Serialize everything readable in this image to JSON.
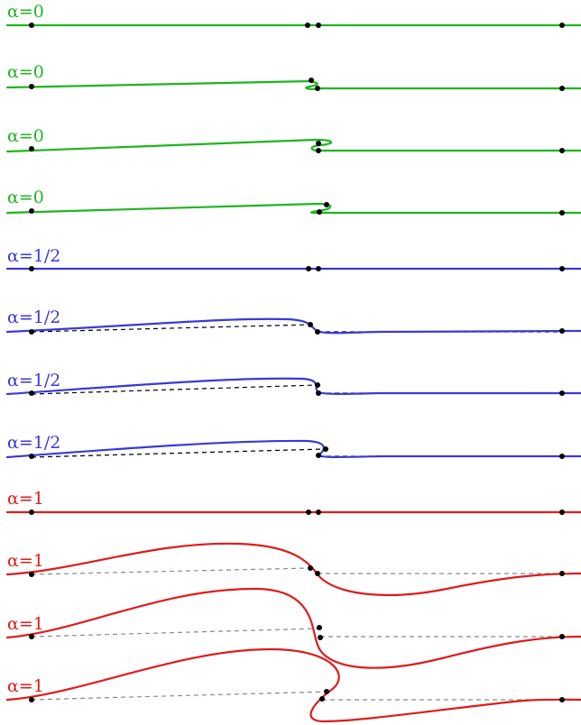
{
  "colors": {
    "alpha_0": "#1fb51f",
    "alpha_half": "#3a3ad6",
    "alpha_1": "#e01b1b",
    "chord_dark": "#000000",
    "chord_grey": "#8a8a8a",
    "node": "#000000"
  },
  "rows": [
    {
      "label": "α=0",
      "alpha": "0",
      "color_key": "alpha_0"
    },
    {
      "label": "α=0",
      "alpha": "0",
      "color_key": "alpha_0"
    },
    {
      "label": "α=0",
      "alpha": "0",
      "color_key": "alpha_0"
    },
    {
      "label": "α=0",
      "alpha": "0",
      "color_key": "alpha_0"
    },
    {
      "label": "α=1/2",
      "alpha": "1/2",
      "color_key": "alpha_half"
    },
    {
      "label": "α=1/2",
      "alpha": "1/2",
      "color_key": "alpha_half"
    },
    {
      "label": "α=1/2",
      "alpha": "1/2",
      "color_key": "alpha_half"
    },
    {
      "label": "α=1/2",
      "alpha": "1/2",
      "color_key": "alpha_half"
    },
    {
      "label": "α=1",
      "alpha": "1",
      "color_key": "alpha_1"
    },
    {
      "label": "α=1",
      "alpha": "1",
      "color_key": "alpha_1"
    },
    {
      "label": "α=1",
      "alpha": "1",
      "color_key": "alpha_1"
    },
    {
      "label": "α=1",
      "alpha": "1",
      "color_key": "alpha_1"
    }
  ]
}
